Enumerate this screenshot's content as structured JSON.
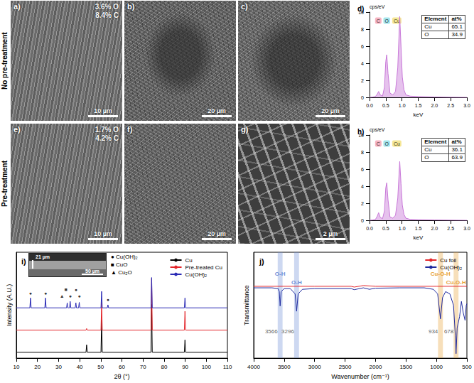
{
  "row_labels": [
    "No pre-treatment",
    "Pre-treatment"
  ],
  "images": [
    {
      "label": "a)",
      "annotations": [
        "3.6% O",
        "8.4% C"
      ],
      "scale_bar": "10 µm"
    },
    {
      "label": "b)",
      "scale_bar": "20 µm"
    },
    {
      "label": "c)",
      "scale_bar": "20 µm"
    },
    {
      "label": "e)",
      "annotations": [
        "1.7% O",
        "4.2% C"
      ],
      "scale_bar": "10 µm"
    },
    {
      "label": "f)",
      "scale_bar": "20 µm"
    },
    {
      "label": "g)",
      "scale_bar": "2 µm"
    }
  ],
  "chart_data": [
    {
      "type": "line",
      "panel": "d)",
      "xlabel": "keV",
      "ylabel": "cps/eV",
      "xlim": [
        0,
        3
      ],
      "xticks": [
        {
          "value": 0,
          "label": "0.0"
        },
        {
          "value": 0.5,
          "label": "0.5"
        },
        {
          "value": 1,
          "label": "1.0"
        },
        {
          "value": 1.5,
          "label": "1.5"
        },
        {
          "value": 2,
          "label": "2.0"
        },
        {
          "value": 2.5,
          "label": "2.5"
        },
        {
          "value": 3,
          "label": "3.0"
        }
      ],
      "ylim": [
        0,
        10
      ],
      "yticks": [
        0,
        2,
        4,
        6,
        8,
        10
      ],
      "grid": false,
      "color": "#c878d8",
      "x": [
        0,
        0.1,
        0.18,
        0.24,
        0.28,
        0.33,
        0.4,
        0.46,
        0.5,
        0.53,
        0.57,
        0.63,
        0.72,
        0.8,
        0.87,
        0.93,
        0.97,
        1.01,
        1.06,
        1.12,
        1.25,
        1.5,
        2.0,
        2.5,
        3.0
      ],
      "values": [
        0,
        0.05,
        0.1,
        0.4,
        0.7,
        0.3,
        0.15,
        1.2,
        4.2,
        5.0,
        2.8,
        0.5,
        0.3,
        0.7,
        3.5,
        9.5,
        6.0,
        2.4,
        0.9,
        0.3,
        0.15,
        0.1,
        0.05,
        0.02,
        0
      ],
      "element_markers": [
        {
          "label": "C",
          "x": 0.27,
          "color": "#f4a3b4"
        },
        {
          "label": "O",
          "x": 0.53,
          "color": "#8fe0e8"
        },
        {
          "label": "Cu",
          "x": 0.84,
          "color": "#f3e07a"
        }
      ],
      "table": {
        "header": [
          "Element",
          "at%"
        ],
        "rows": [
          [
            "Cu",
            65.1
          ],
          [
            "O",
            34.9
          ]
        ]
      }
    },
    {
      "type": "line",
      "panel": "h)",
      "xlabel": "keV",
      "ylabel": "cps/eV",
      "xlim": [
        0,
        3
      ],
      "xticks": [
        {
          "value": 0,
          "label": "0.0"
        },
        {
          "value": 0.5,
          "label": "0.5"
        },
        {
          "value": 1,
          "label": "1.0"
        },
        {
          "value": 1.5,
          "label": "1.5"
        },
        {
          "value": 2,
          "label": "2.0"
        },
        {
          "value": 2.5,
          "label": "2.5"
        },
        {
          "value": 3,
          "label": "3.0"
        }
      ],
      "ylim": [
        0,
        10
      ],
      "yticks": [
        0,
        2,
        4,
        6,
        8,
        10
      ],
      "grid": false,
      "color": "#c878d8",
      "x": [
        0,
        0.1,
        0.18,
        0.24,
        0.28,
        0.33,
        0.4,
        0.46,
        0.5,
        0.53,
        0.57,
        0.63,
        0.72,
        0.8,
        0.87,
        0.93,
        0.97,
        1.01,
        1.06,
        1.12,
        1.25,
        1.5,
        2.0,
        2.5,
        3.0
      ],
      "values": [
        0,
        0.05,
        0.1,
        0.5,
        0.9,
        0.35,
        0.2,
        1.1,
        3.8,
        4.4,
        2.4,
        0.4,
        0.25,
        0.6,
        2.6,
        6.9,
        4.3,
        1.8,
        0.7,
        0.25,
        0.12,
        0.08,
        0.04,
        0.02,
        0
      ],
      "element_markers": [
        {
          "label": "C",
          "x": 0.27,
          "color": "#f4a3b4"
        },
        {
          "label": "O",
          "x": 0.53,
          "color": "#8fe0e8"
        },
        {
          "label": "Cu",
          "x": 0.84,
          "color": "#f3e07a"
        }
      ],
      "table": {
        "header": [
          "Element",
          "at%"
        ],
        "rows": [
          [
            "Cu",
            36.1
          ],
          [
            "O",
            63.9
          ]
        ]
      }
    },
    {
      "type": "line",
      "panel": "i)",
      "xlabel": "2θ (°)",
      "ylabel": "Intensity (A.U.)",
      "xlim": [
        10,
        110
      ],
      "xticks": [
        10,
        20,
        30,
        40,
        50,
        60,
        70,
        80,
        90,
        100,
        110
      ],
      "ylim": [
        0,
        130
      ],
      "yticks": [],
      "tick_labels": "x",
      "grid": false,
      "legend": "top-right",
      "series": [
        {
          "name": "Cu",
          "color": "#000000",
          "x": [
            10,
            43.0,
            43.3,
            43.6,
            50.1,
            50.4,
            50.7,
            73.8,
            74.1,
            74.4,
            89.6,
            89.9,
            90.2,
            110
          ],
          "values": [
            7.3,
            7.3,
            16.4,
            7.3,
            7.3,
            47.3,
            7.3,
            7.3,
            66,
            7.3,
            7.3,
            22.4,
            7.3,
            7.3
          ]
        },
        {
          "name": "Pre-treated Cu",
          "color": "#e3262b",
          "x": [
            10,
            43.0,
            43.3,
            43.6,
            50.1,
            50.4,
            50.7,
            73.8,
            74.1,
            74.4,
            89.6,
            89.9,
            90.2,
            110
          ],
          "values": [
            34.5,
            34.5,
            36.4,
            34.5,
            34.5,
            68.5,
            34.5,
            34.5,
            98,
            34.5,
            34.5,
            57.6,
            34.5,
            34.5
          ]
        },
        {
          "name": "Cu(OH)₂",
          "color": "#2b2bb5",
          "x": [
            10,
            16.4,
            16.7,
            17.0,
            23.5,
            23.8,
            24.1,
            33.8,
            34.1,
            34.4,
            35.2,
            35.5,
            35.8,
            37.9,
            38.2,
            38.5,
            39.5,
            39.8,
            40.1,
            50.1,
            50.4,
            50.7,
            53.1,
            53.4,
            53.7,
            73.8,
            74.1,
            74.4,
            89.6,
            89.9,
            90.2,
            110
          ],
          "values": [
            61.8,
            61.8,
            73.9,
            61.8,
            61.8,
            73.9,
            61.8,
            61.8,
            67.9,
            61.8,
            61.8,
            69.7,
            61.8,
            61.8,
            68,
            61.8,
            61.8,
            68.5,
            61.8,
            61.8,
            82,
            61.8,
            61.8,
            65.5,
            61.8,
            61.8,
            99,
            61.8,
            61.8,
            73.9,
            61.8,
            61.8
          ]
        }
      ],
      "peak_markers": [
        {
          "x": 16.7,
          "y": 80,
          "symbol": "●"
        },
        {
          "x": 23.8,
          "y": 80,
          "symbol": "●"
        },
        {
          "x": 31.6,
          "y": 76,
          "symbol": "▲"
        },
        {
          "x": 33.4,
          "y": 84,
          "symbol": "■"
        },
        {
          "x": 35.5,
          "y": 76,
          "symbol": "●"
        },
        {
          "x": 38.2,
          "y": 84,
          "symbol": "●"
        },
        {
          "x": 39.8,
          "y": 76,
          "symbol": "●"
        },
        {
          "x": 53.4,
          "y": 72,
          "symbol": "●"
        }
      ],
      "phase_key": [
        {
          "symbol": "●",
          "label": "Cu(OH)₂"
        },
        {
          "symbol": "■",
          "label": "CuO"
        },
        {
          "symbol": "▲",
          "label": "Cu₂O"
        }
      ],
      "inset": {
        "thickness_label": "21 µm",
        "scale_bar": "50 µm"
      }
    },
    {
      "type": "line",
      "panel": "j)",
      "xlabel": "Wavenumber (cm⁻¹)",
      "ylabel": "Transmittance",
      "xlim": [
        4000,
        500
      ],
      "xticks": [
        4000,
        3500,
        3000,
        2500,
        2000,
        1500,
        1000,
        500
      ],
      "ylim": [
        0,
        140
      ],
      "yticks": [],
      "tick_labels": "x",
      "grid": false,
      "legend": "top-right",
      "series": [
        {
          "name": "Cu foil",
          "color": "#e3262b",
          "x": [
            4000,
            3000,
            2400,
            2350,
            2200,
            2000,
            1000,
            500
          ],
          "values": [
            95,
            95,
            95,
            94,
            96,
            95,
            95,
            95
          ]
        },
        {
          "name": "Cu(OH)₂",
          "color": "#1f2a9e",
          "x": [
            4000,
            3700,
            3600,
            3580,
            3566,
            3550,
            3500,
            3400,
            3320,
            3296,
            3270,
            3200,
            3000,
            2400,
            2350,
            2200,
            2100,
            2000,
            1600,
            1200,
            1050,
            980,
            934,
            900,
            850,
            780,
            720,
            690,
            678,
            660,
            620,
            590,
            560,
            530,
            510,
            500
          ],
          "values": [
            93,
            93,
            92,
            88,
            69,
            88,
            92,
            92,
            85,
            62,
            85,
            91,
            92,
            92,
            90.5,
            93,
            91,
            92.5,
            93,
            93,
            91,
            85,
            52,
            80,
            88,
            85,
            70,
            30,
            6,
            40,
            55,
            75,
            60,
            50,
            70,
            72
          ]
        }
      ],
      "bands": [
        {
          "x": 3566,
          "label": "O-H",
          "color": "#6f8fd8"
        },
        {
          "x": 3296,
          "label": "O-H",
          "color": "#6f8fd8"
        },
        {
          "x": 934,
          "label": "Cu-O-H",
          "color": "#e8a33a"
        },
        {
          "x": 678,
          "label": "Cu-O-H",
          "color": "#e8a33a"
        }
      ]
    }
  ]
}
